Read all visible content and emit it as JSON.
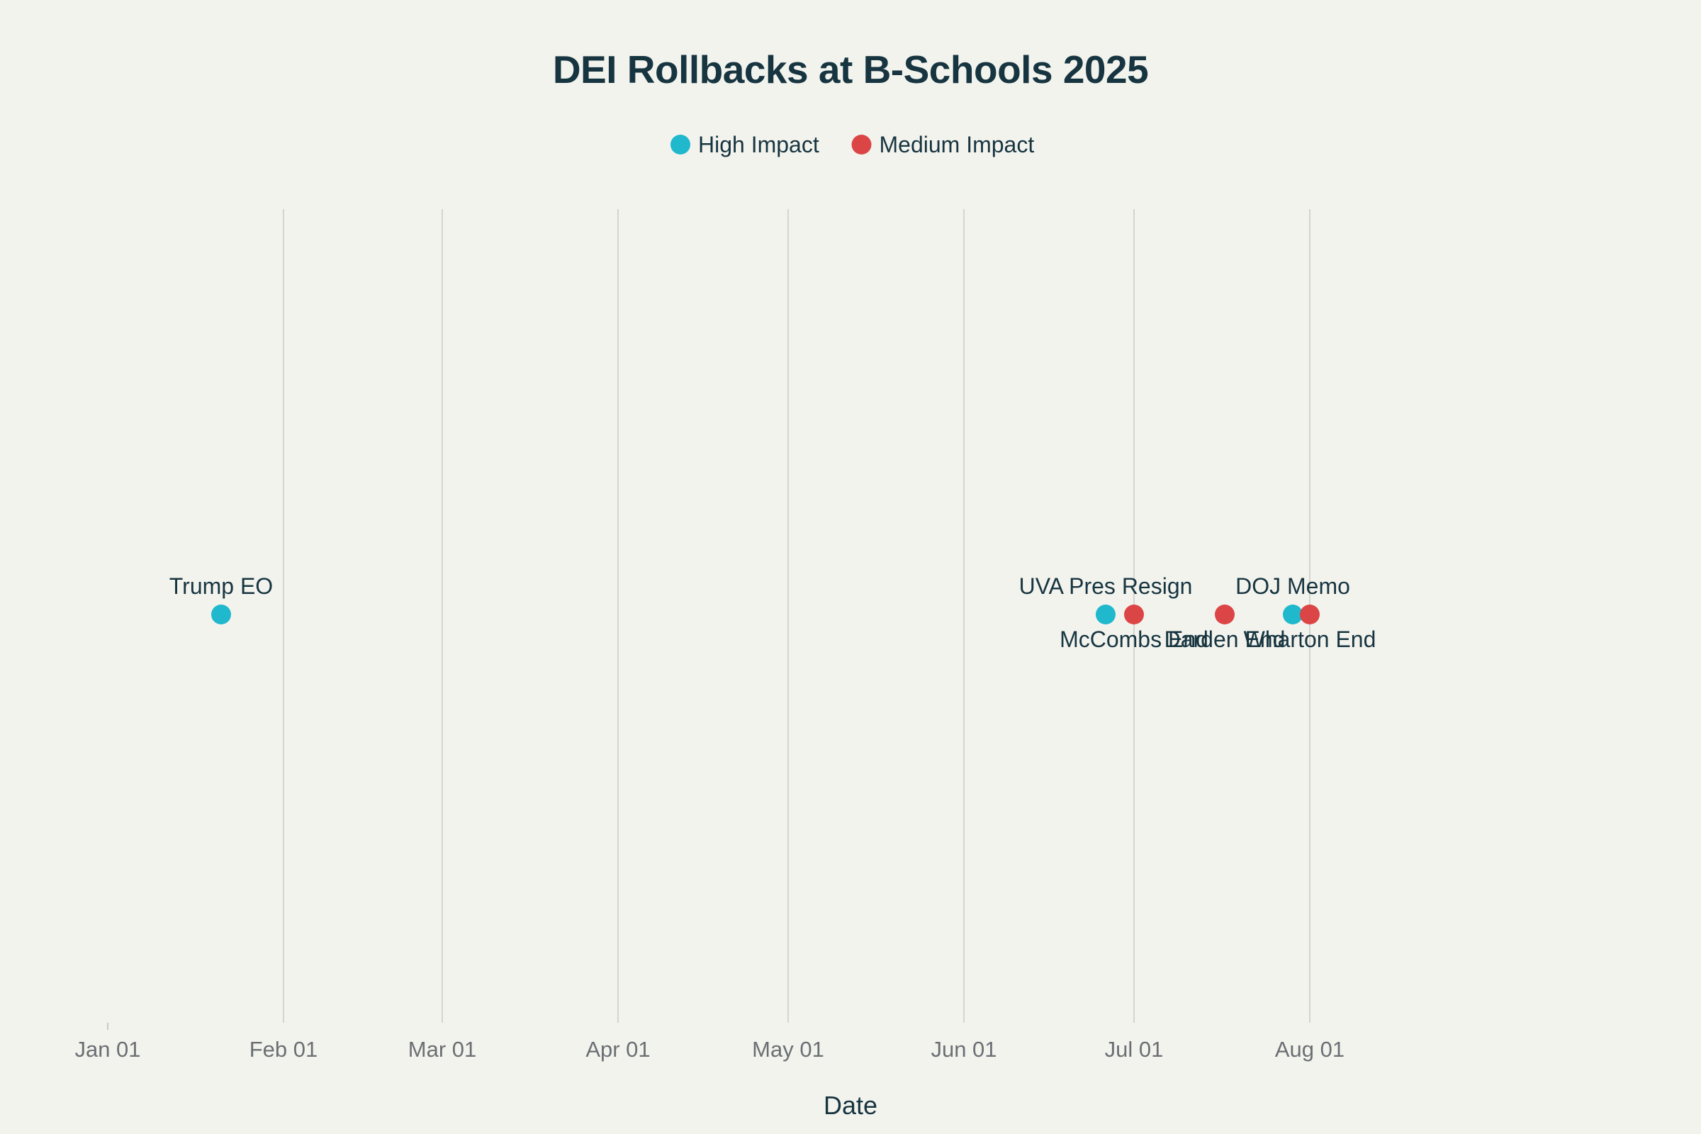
{
  "chart_data": {
    "type": "scatter",
    "title": "DEI Rollbacks at B-Schools 2025",
    "xlabel": "Date",
    "ylabel": "",
    "x_axis": {
      "scale": "date",
      "range": [
        "2024-12-26",
        "2025-09-04"
      ],
      "ticks": [
        {
          "date": "2025-01-01",
          "label": "Jan 01"
        },
        {
          "date": "2025-02-01",
          "label": "Feb 01"
        },
        {
          "date": "2025-03-01",
          "label": "Mar 01"
        },
        {
          "date": "2025-04-01",
          "label": "Apr 01"
        },
        {
          "date": "2025-05-01",
          "label": "May 01"
        },
        {
          "date": "2025-06-01",
          "label": "Jun 01"
        },
        {
          "date": "2025-07-01",
          "label": "Jul 01"
        },
        {
          "date": "2025-08-01",
          "label": "Aug 01"
        }
      ],
      "vertical_grid": true
    },
    "legend": {
      "placement": "top-center",
      "entries": [
        {
          "name": "High Impact",
          "color": "#1fb8cd"
        },
        {
          "name": "Medium Impact",
          "color": "#db4545"
        }
      ]
    },
    "series": [
      {
        "name": "High Impact",
        "color": "#1fb8cd",
        "points": [
          {
            "date": "2025-01-21",
            "y": 1,
            "label": "Trump EO",
            "label_position": "top"
          },
          {
            "date": "2025-06-26",
            "y": 1,
            "label": "UVA Pres Resign",
            "label_position": "top"
          },
          {
            "date": "2025-07-29",
            "y": 1,
            "label": "DOJ Memo",
            "label_position": "top"
          }
        ]
      },
      {
        "name": "Medium Impact",
        "color": "#db4545",
        "points": [
          {
            "date": "2025-07-01",
            "y": 1,
            "label": "McCombs End",
            "label_position": "bottom"
          },
          {
            "date": "2025-07-17",
            "y": 1,
            "label": "Darden End",
            "label_position": "bottom"
          },
          {
            "date": "2025-08-01",
            "y": 1,
            "label": "Wharton End",
            "label_position": "bottom"
          }
        ]
      }
    ]
  }
}
